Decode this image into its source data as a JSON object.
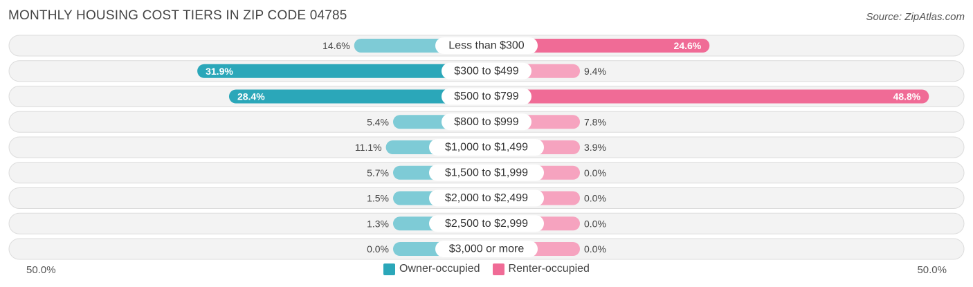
{
  "title": "MONTHLY HOUSING COST TIERS IN ZIP CODE 04785",
  "source": "Source: ZipAtlas.com",
  "colors": {
    "owner": "#2ba7b9",
    "owner_light": "#7ecbd6",
    "renter": "#f06b96",
    "renter_light": "#f6a3bf"
  },
  "chart_data": {
    "type": "bar",
    "orientation": "diverging-horizontal",
    "categories": [
      "Less than $300",
      "$300 to $499",
      "$500 to $799",
      "$800 to $999",
      "$1,000 to $1,499",
      "$1,500 to $1,999",
      "$2,000 to $2,499",
      "$2,500 to $2,999",
      "$3,000 or more"
    ],
    "series": [
      {
        "name": "Owner-occupied",
        "values": [
          14.6,
          31.9,
          28.4,
          5.4,
          11.1,
          5.7,
          1.5,
          1.3,
          0.0
        ],
        "labels": [
          "14.6%",
          "31.9%",
          "28.4%",
          "5.4%",
          "11.1%",
          "5.7%",
          "1.5%",
          "1.3%",
          "0.0%"
        ]
      },
      {
        "name": "Renter-occupied",
        "values": [
          24.6,
          9.4,
          48.8,
          7.8,
          3.9,
          0.0,
          0.0,
          0.0,
          0.0
        ],
        "labels": [
          "24.6%",
          "9.4%",
          "48.8%",
          "7.8%",
          "3.9%",
          "0.0%",
          "0.0%",
          "0.0%",
          "0.0%"
        ]
      }
    ],
    "xlim": [
      -50,
      50
    ],
    "axis_left_label": "50.0%",
    "axis_right_label": "50.0%",
    "legend_position": "bottom-center"
  }
}
